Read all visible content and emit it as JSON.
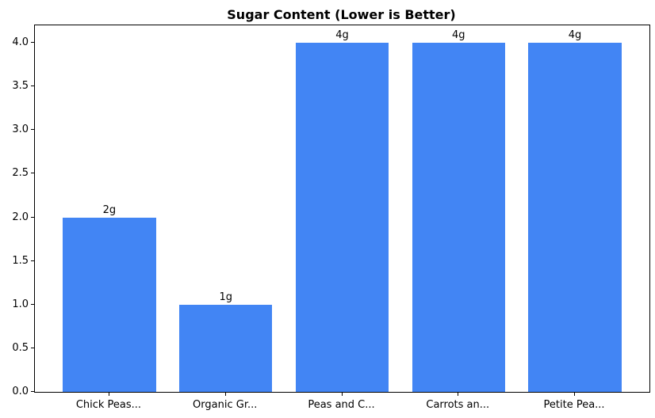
{
  "chart_data": {
    "type": "bar",
    "title": "Sugar Content (Lower is Better)",
    "categories": [
      "Chick Peas...",
      "Organic Gr...",
      "Peas and C...",
      "Carrots an...",
      "Petite Pea..."
    ],
    "values": [
      2,
      1,
      4,
      4,
      4
    ],
    "bar_labels": [
      "2g",
      "1g",
      "4g",
      "4g",
      "4g"
    ],
    "ytick_labels": [
      "0.0",
      "0.5",
      "1.0",
      "1.5",
      "2.0",
      "2.5",
      "3.0",
      "3.5",
      "4.0"
    ],
    "yticks": [
      0.0,
      0.5,
      1.0,
      1.5,
      2.0,
      2.5,
      3.0,
      3.5,
      4.0
    ],
    "ylim": [
      0,
      4.2
    ],
    "xlabel": "",
    "ylabel": "",
    "bar_color": "#4285F4",
    "axis_color": "#000000",
    "grid": false,
    "legend": null
  }
}
